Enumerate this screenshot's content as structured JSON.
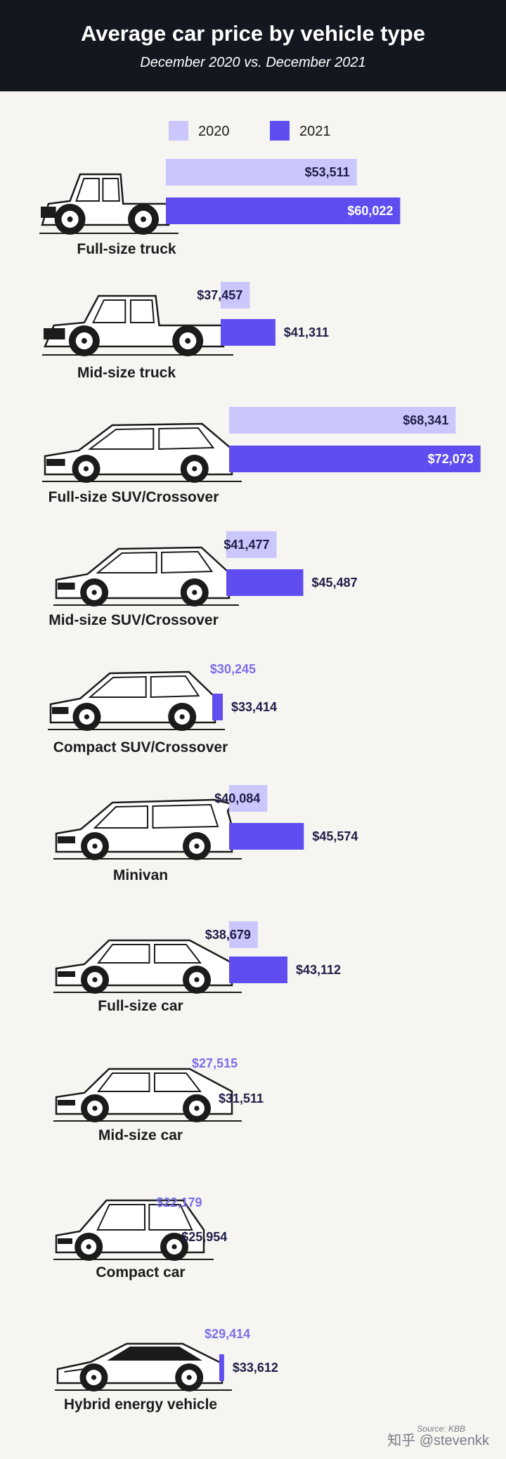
{
  "header": {
    "title": "Average car price by vehicle type",
    "subtitle": "December 2020 vs. December 2021"
  },
  "colors": {
    "header_bg": "#131720",
    "color_2020": "#cbc6fc",
    "color_2021": "#5f4df0",
    "label_dark": "#1f1d47",
    "label_light": "#ffffff",
    "label_muted": "#7a6fe8",
    "vehicle_stroke": "#1b1b1b"
  },
  "legend": [
    {
      "label": "2020",
      "color": "#cbc6fc"
    },
    {
      "label": "2021",
      "color": "#5f4df0"
    }
  ],
  "chart_data": {
    "type": "bar",
    "orientation": "horizontal",
    "title": "Average car price by vehicle type",
    "subtitle": "December 2020 vs. December 2021",
    "categories": [
      "Full-size truck",
      "Mid-size truck",
      "Full-size SUV/Crossover",
      "Mid-size SUV/Crossover",
      "Compact SUV/Crossover",
      "Minivan",
      "Full-size car",
      "Mid-size car",
      "Compact car",
      "Hybrid energy vehicle"
    ],
    "vehicle_icons": [
      "pickup-truck-icon",
      "midsize-truck-icon",
      "fullsize-suv-icon",
      "midsize-suv-icon",
      "compact-suv-icon",
      "minivan-icon",
      "fullsize-car-icon",
      "midsize-car-icon",
      "compact-car-icon",
      "hybrid-vehicle-icon"
    ],
    "series": [
      {
        "name": "2020",
        "values": [
          53511,
          37457,
          68341,
          41477,
          30245,
          40084,
          38679,
          27515,
          22179,
          29414
        ],
        "labels": [
          "$53,511",
          "$37,457",
          "$68,341",
          "$41,477",
          "$30,245",
          "$40,084",
          "$38,679",
          "$27,515",
          "$22,179",
          "$29,414"
        ]
      },
      {
        "name": "2021",
        "values": [
          60022,
          41311,
          72073,
          45487,
          33414,
          45574,
          43112,
          31511,
          25954,
          33612
        ],
        "labels": [
          "$60,022",
          "$41,311",
          "$72,073",
          "$45,487",
          "$33,414",
          "$45,574",
          "$43,112",
          "$31,511",
          "$25,954",
          "$33,612"
        ]
      }
    ],
    "xlabel": "",
    "ylabel": "",
    "xlim": [
      0,
      75000
    ],
    "grid": false,
    "legend_position": "top"
  },
  "footer": {
    "source": "Source: KBB",
    "watermark": "知乎 @stevenkk"
  }
}
